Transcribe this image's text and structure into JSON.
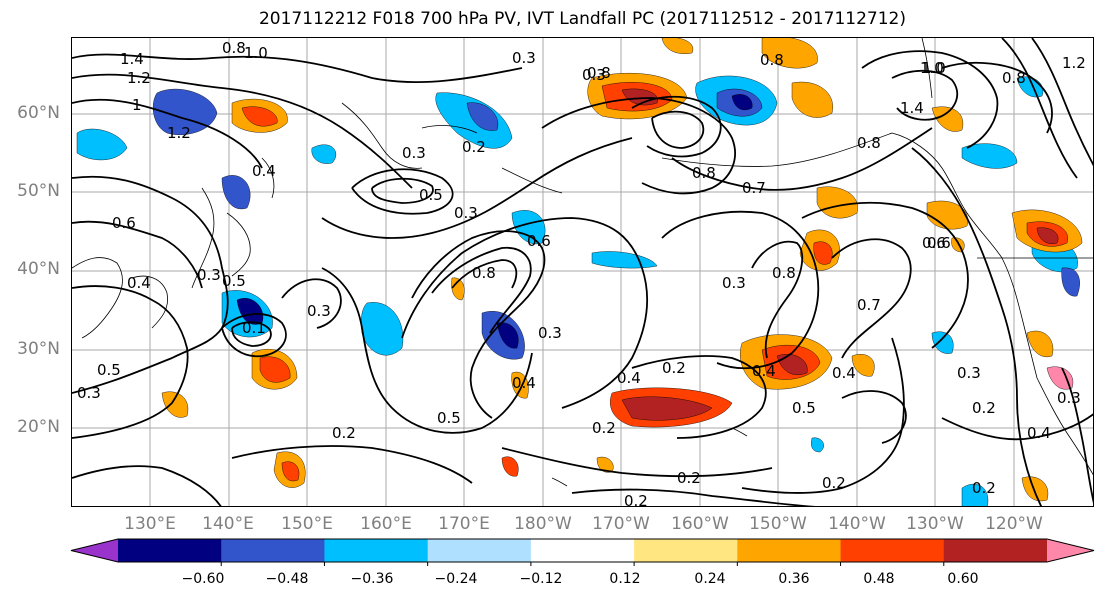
{
  "title": "2017112212 F018 700 hPa PV, IVT Landfall PC (2017112512 - 2017112712)",
  "map": {
    "lat_labels": [
      "60°N",
      "50°N",
      "40°N",
      "30°N",
      "20°N"
    ],
    "lon_labels": [
      "130°E",
      "140°E",
      "150°E",
      "160°E",
      "170°E",
      "180°W",
      "170°W",
      "160°W",
      "150°W",
      "140°W",
      "130°W",
      "120°W"
    ],
    "contour_labels": [
      {
        "text": "1.4"
      },
      {
        "text": "1.2"
      },
      {
        "text": "0.8"
      },
      {
        "text": "1.0"
      },
      {
        "text": "1"
      },
      {
        "text": "1.2"
      },
      {
        "text": "0.6"
      },
      {
        "text": "0.4"
      },
      {
        "text": "0.4"
      },
      {
        "text": "0.3"
      },
      {
        "text": "0.5"
      },
      {
        "text": "0.3"
      },
      {
        "text": "0.1"
      },
      {
        "text": "0.5"
      },
      {
        "text": "0.3"
      },
      {
        "text": "0.3"
      },
      {
        "text": "0.2"
      },
      {
        "text": "0.3"
      },
      {
        "text": "0.2"
      },
      {
        "text": "0.5"
      },
      {
        "text": "0.3"
      },
      {
        "text": "0.4"
      },
      {
        "text": "0.8"
      },
      {
        "text": "0.6"
      },
      {
        "text": "0.3"
      },
      {
        "text": "0.5"
      },
      {
        "text": "0.2"
      },
      {
        "text": "0.4"
      },
      {
        "text": "0.3"
      },
      {
        "text": "0.8"
      },
      {
        "text": "1.0"
      },
      {
        "text": "0.8"
      },
      {
        "text": "0.7"
      },
      {
        "text": "0.8"
      },
      {
        "text": "0.3"
      },
      {
        "text": "0.7"
      },
      {
        "text": "0.6"
      },
      {
        "text": "0.2"
      },
      {
        "text": "0.4"
      },
      {
        "text": "0.4"
      },
      {
        "text": "0.5"
      },
      {
        "text": "0.2"
      },
      {
        "text": "0.2"
      },
      {
        "text": "0.2"
      },
      {
        "text": "0.8"
      },
      {
        "text": "1.0"
      },
      {
        "text": "1.2"
      },
      {
        "text": "1.4"
      },
      {
        "text": "0.8"
      },
      {
        "text": "0.3"
      },
      {
        "text": "0.2"
      },
      {
        "text": "0.4"
      },
      {
        "text": "0.2"
      },
      {
        "text": "0.3"
      },
      {
        "text": "0.6"
      },
      {
        "text": "0.8"
      }
    ]
  },
  "colorbar": {
    "tick_labels": [
      "−0.60",
      "−0.48",
      "−0.36",
      "−0.24",
      "−0.12",
      "0.12",
      "0.24",
      "0.36",
      "0.48",
      "0.60"
    ],
    "colors": [
      "#9933cc",
      "#000080",
      "#3355cc",
      "#00bfff",
      "#b0e0ff",
      "#ffffff",
      "#ffe680",
      "#ffa500",
      "#ff4000",
      "#b22222",
      "#ff88aa"
    ]
  }
}
